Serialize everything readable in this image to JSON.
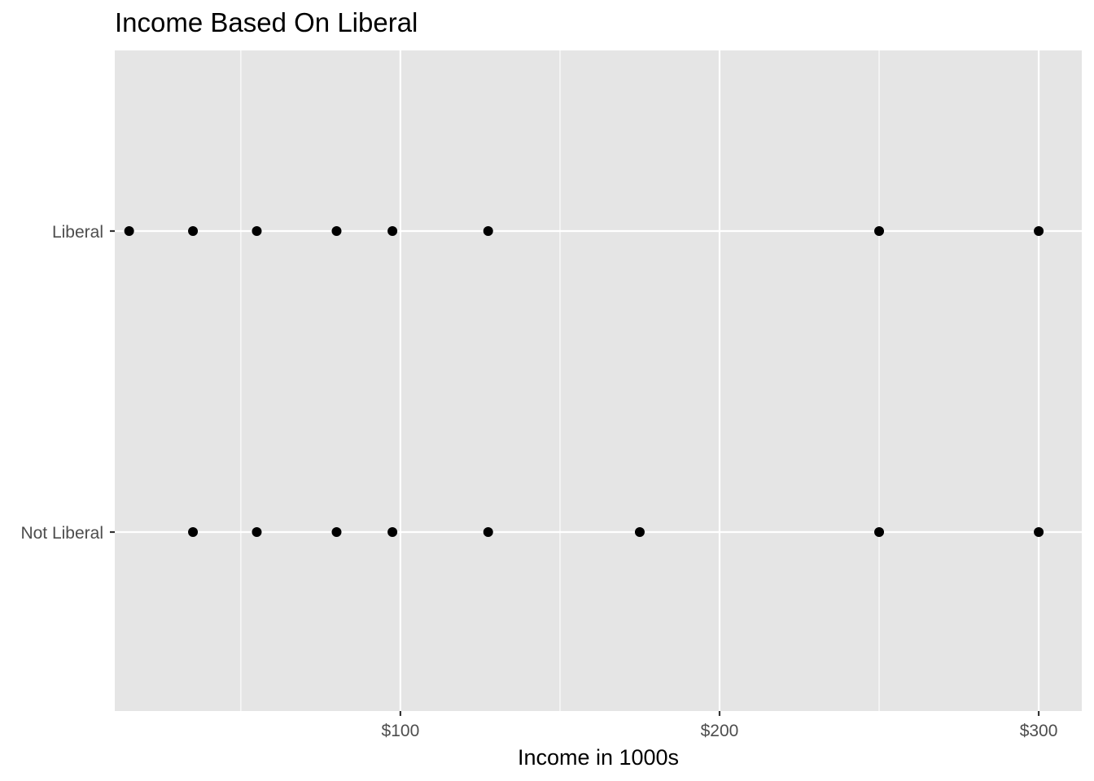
{
  "chart_data": {
    "type": "scatter",
    "title": "Income Based On Liberal",
    "xlabel": "Income in 1000s",
    "ylabel": "",
    "x_tick_values": [
      100,
      200,
      300
    ],
    "x_tick_labels": [
      "$100",
      "$200",
      "$300"
    ],
    "x_minor_breaks": [
      50,
      150,
      250
    ],
    "xlim": [
      10.5,
      313.5
    ],
    "categories": [
      "Not Liberal",
      "Liberal"
    ],
    "grid": true,
    "background_color": "#e5e5e5",
    "grid_color": "#ffffff",
    "point_color": "#000000",
    "series": [
      {
        "category": "Liberal",
        "x": [
          15,
          35,
          55,
          80,
          97.5,
          127.5,
          250,
          300
        ]
      },
      {
        "category": "Not Liberal",
        "x": [
          35,
          55,
          80,
          97.5,
          127.5,
          175,
          250,
          300
        ]
      }
    ]
  }
}
